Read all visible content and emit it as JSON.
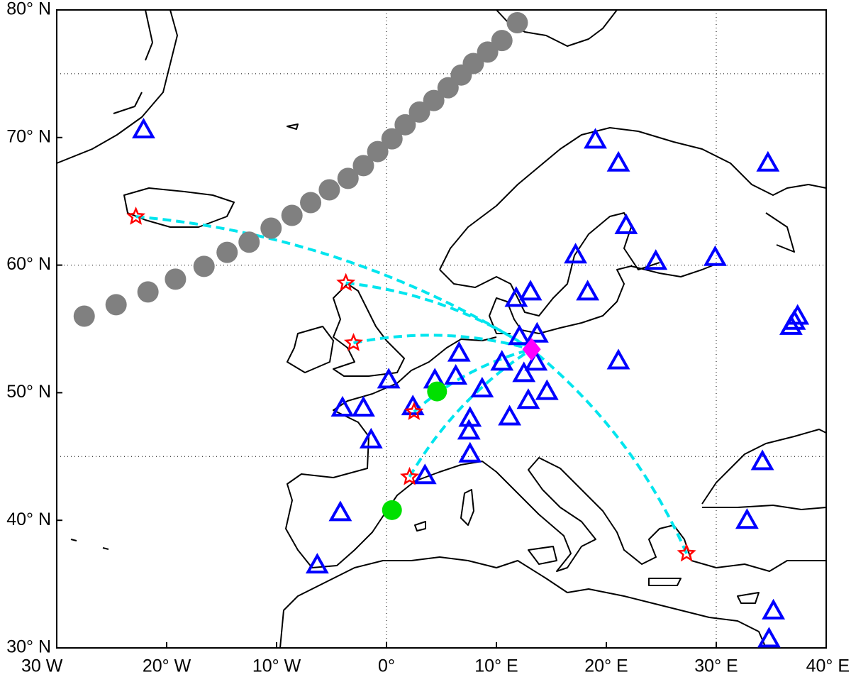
{
  "map": {
    "xlim": [
      -30,
      40
    ],
    "ylim": [
      30,
      80
    ],
    "xticks": [
      {
        "value": -30,
        "label": "30 W"
      },
      {
        "value": -20,
        "label": "20° W"
      },
      {
        "value": -10,
        "label": "10° W"
      },
      {
        "value": 0,
        "label": "0°"
      },
      {
        "value": 10,
        "label": "10° E"
      },
      {
        "value": 20,
        "label": "20° E"
      },
      {
        "value": 30,
        "label": "30° E"
      },
      {
        "value": 40,
        "label": "40° E"
      }
    ],
    "yticks": [
      {
        "value": 30,
        "label": "30° N"
      },
      {
        "value": 40,
        "label": "40° N"
      },
      {
        "value": 50,
        "label": "50° N"
      },
      {
        "value": 60,
        "label": "60° N"
      },
      {
        "value": 70,
        "label": "70° N"
      },
      {
        "value": 80,
        "label": "80° N"
      }
    ],
    "grid_lon": [
      0,
      30
    ],
    "grid_lat": [
      45,
      60,
      75
    ],
    "stations": {
      "color": "#0000ff",
      "lon": [
        -22.1,
        19.0,
        21.1,
        34.7,
        21.8,
        17.2,
        24.5,
        29.9,
        11.8,
        13.1,
        18.3,
        36.8,
        37.1,
        37.4,
        12.1,
        13.7,
        21.1,
        6.6,
        10.5,
        0.2,
        4.4,
        6.3,
        12.5,
        13.6,
        8.7,
        12.9,
        11.2,
        14.6,
        -4.0,
        -2.1,
        7.6,
        7.5,
        -1.4,
        7.6,
        3.5,
        -4.2,
        -6.3,
        34.2,
        32.8,
        35.2,
        34.8,
        2.4
      ],
      "lat": [
        70.6,
        69.8,
        68.0,
        68.0,
        63.1,
        60.8,
        60.3,
        60.6,
        57.4,
        57.9,
        57.9,
        55.2,
        55.6,
        56.0,
        54.4,
        54.6,
        52.5,
        53.1,
        52.4,
        51.0,
        51.0,
        51.3,
        51.5,
        52.4,
        50.3,
        49.4,
        48.1,
        50.1,
        48.8,
        48.8,
        48.0,
        47.0,
        46.3,
        45.2,
        43.5,
        40.6,
        36.5,
        44.6,
        40.0,
        32.9,
        30.7,
        48.9
      ]
    },
    "sources": {
      "color": "#ff0000",
      "lon": [
        -22.8,
        -3.7,
        -3.0,
        2.5,
        2.1,
        27.3
      ],
      "lat": [
        63.8,
        58.6,
        53.9,
        48.5,
        43.4,
        37.4
      ]
    },
    "green": {
      "color": "#00e000",
      "lon": [
        4.6,
        0.5
      ],
      "lat": [
        50.1,
        40.8
      ]
    },
    "target": {
      "color": "#ff00ff",
      "lon": 13.2,
      "lat": 53.4
    },
    "track": {
      "color": "#808080",
      "lon": [
        -27.5,
        -24.6,
        -21.7,
        -19.2,
        -16.6,
        -14.5,
        -12.5,
        -10.5,
        -8.6,
        -6.9,
        -5.2,
        -3.5,
        -2.1,
        -0.8,
        0.5,
        1.7,
        3.0,
        4.3,
        5.6,
        6.8,
        7.9,
        9.2,
        10.5,
        11.9
      ],
      "lat": [
        56.0,
        56.9,
        57.9,
        58.9,
        59.9,
        61.0,
        61.8,
        62.9,
        63.9,
        64.9,
        65.9,
        66.8,
        67.8,
        68.9,
        69.9,
        71.0,
        72.0,
        72.9,
        73.9,
        74.9,
        75.8,
        76.7,
        77.6,
        79.0
      ]
    },
    "link_color": "#00e5ee"
  }
}
